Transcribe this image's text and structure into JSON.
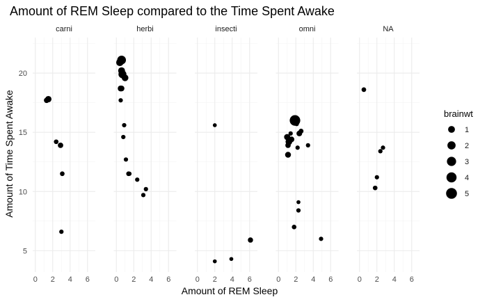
{
  "chart_data": {
    "type": "scatter",
    "title": "Amount of REM Sleep compared to the Time Spent Awake",
    "xlabel": "Amount of REM Sleep",
    "ylabel": "Amount of Time Spent Awake",
    "xlim": [
      -0.3,
      6.9
    ],
    "ylim": [
      3.2,
      23.0
    ],
    "x_ticks": [
      0,
      2,
      4,
      6
    ],
    "y_ticks": [
      5,
      10,
      15,
      20
    ],
    "grid": true,
    "facets": [
      {
        "name": "carni",
        "points": [
          {
            "x": 1.3,
            "y": 17.7,
            "size": 0.3
          },
          {
            "x": 1.5,
            "y": 17.8,
            "size": 0.7
          },
          {
            "x": 2.4,
            "y": 14.2,
            "size": 0.1
          },
          {
            "x": 2.9,
            "y": 13.9,
            "size": 0.3
          },
          {
            "x": 3.1,
            "y": 11.5,
            "size": 0.1
          },
          {
            "x": 3.0,
            "y": 6.6,
            "size": 0.05
          }
        ]
      },
      {
        "name": "herbi",
        "points": [
          {
            "x": 0.4,
            "y": 20.9,
            "size": 1.3
          },
          {
            "x": 0.6,
            "y": 21.1,
            "size": 2.5
          },
          {
            "x": 0.6,
            "y": 20.2,
            "size": 1.0
          },
          {
            "x": 0.7,
            "y": 19.9,
            "size": 1.8
          },
          {
            "x": 1.0,
            "y": 19.6,
            "size": 0.9
          },
          {
            "x": 0.5,
            "y": 18.7,
            "size": 0.5
          },
          {
            "x": 0.6,
            "y": 18.7,
            "size": 0.4
          },
          {
            "x": 0.5,
            "y": 17.7,
            "size": 0.05
          },
          {
            "x": 0.9,
            "y": 15.6,
            "size": 0.05
          },
          {
            "x": 0.8,
            "y": 14.6,
            "size": 0.05
          },
          {
            "x": 1.1,
            "y": 12.7,
            "size": 0.05
          },
          {
            "x": 1.4,
            "y": 11.5,
            "size": 0.1
          },
          {
            "x": 1.5,
            "y": 11.5,
            "size": 0.05
          },
          {
            "x": 2.4,
            "y": 11.0,
            "size": 0.05
          },
          {
            "x": 3.4,
            "y": 10.2,
            "size": 0.05
          },
          {
            "x": 3.1,
            "y": 9.7,
            "size": 0.05
          }
        ]
      },
      {
        "name": "insecti",
        "points": [
          {
            "x": 2.0,
            "y": 15.6,
            "size": 0.01
          },
          {
            "x": 6.1,
            "y": 5.9,
            "size": 0.25
          },
          {
            "x": 3.9,
            "y": 4.3,
            "size": 0.01
          },
          {
            "x": 2.0,
            "y": 4.1,
            "size": 0.01
          }
        ]
      },
      {
        "name": "omni",
        "points": [
          {
            "x": 1.9,
            "y": 16.0,
            "size": 4.6
          },
          {
            "x": 2.1,
            "y": 15.7,
            "size": 0.05
          },
          {
            "x": 2.6,
            "y": 15.1,
            "size": 0.15
          },
          {
            "x": 2.4,
            "y": 14.9,
            "size": 0.4
          },
          {
            "x": 1.4,
            "y": 14.9,
            "size": 0.05
          },
          {
            "x": 1.0,
            "y": 14.6,
            "size": 0.6
          },
          {
            "x": 1.5,
            "y": 14.4,
            "size": 0.4
          },
          {
            "x": 1.2,
            "y": 14.2,
            "size": 0.9
          },
          {
            "x": 1.1,
            "y": 13.9,
            "size": 0.3
          },
          {
            "x": 3.4,
            "y": 13.9,
            "size": 0.05
          },
          {
            "x": 2.2,
            "y": 13.7,
            "size": 0.05
          },
          {
            "x": 1.1,
            "y": 13.1,
            "size": 0.5
          },
          {
            "x": 2.3,
            "y": 9.1,
            "size": 0.01
          },
          {
            "x": 2.3,
            "y": 8.4,
            "size": 0.05
          },
          {
            "x": 1.8,
            "y": 7.0,
            "size": 0.1
          },
          {
            "x": 4.9,
            "y": 6.0,
            "size": 0.05
          }
        ]
      },
      {
        "name": "NA",
        "points": [
          {
            "x": 0.5,
            "y": 18.6,
            "size": 0.1
          },
          {
            "x": 2.7,
            "y": 13.7,
            "size": 0.05
          },
          {
            "x": 2.4,
            "y": 13.4,
            "size": 0.05
          },
          {
            "x": 2.0,
            "y": 11.2,
            "size": 0.05
          },
          {
            "x": 1.8,
            "y": 10.3,
            "size": 0.1
          }
        ]
      }
    ],
    "legend": {
      "title": "brainwt",
      "position": "right",
      "entries": [
        {
          "label": "1",
          "value": 1
        },
        {
          "label": "2",
          "value": 2
        },
        {
          "label": "3",
          "value": 3
        },
        {
          "label": "4",
          "value": 4
        },
        {
          "label": "5",
          "value": 5
        }
      ]
    },
    "colors": {
      "point": "#000000",
      "panel_bg": "#ffffff",
      "grid_major": "#ebebeb",
      "grid_minor": "#f4f4f4"
    }
  }
}
